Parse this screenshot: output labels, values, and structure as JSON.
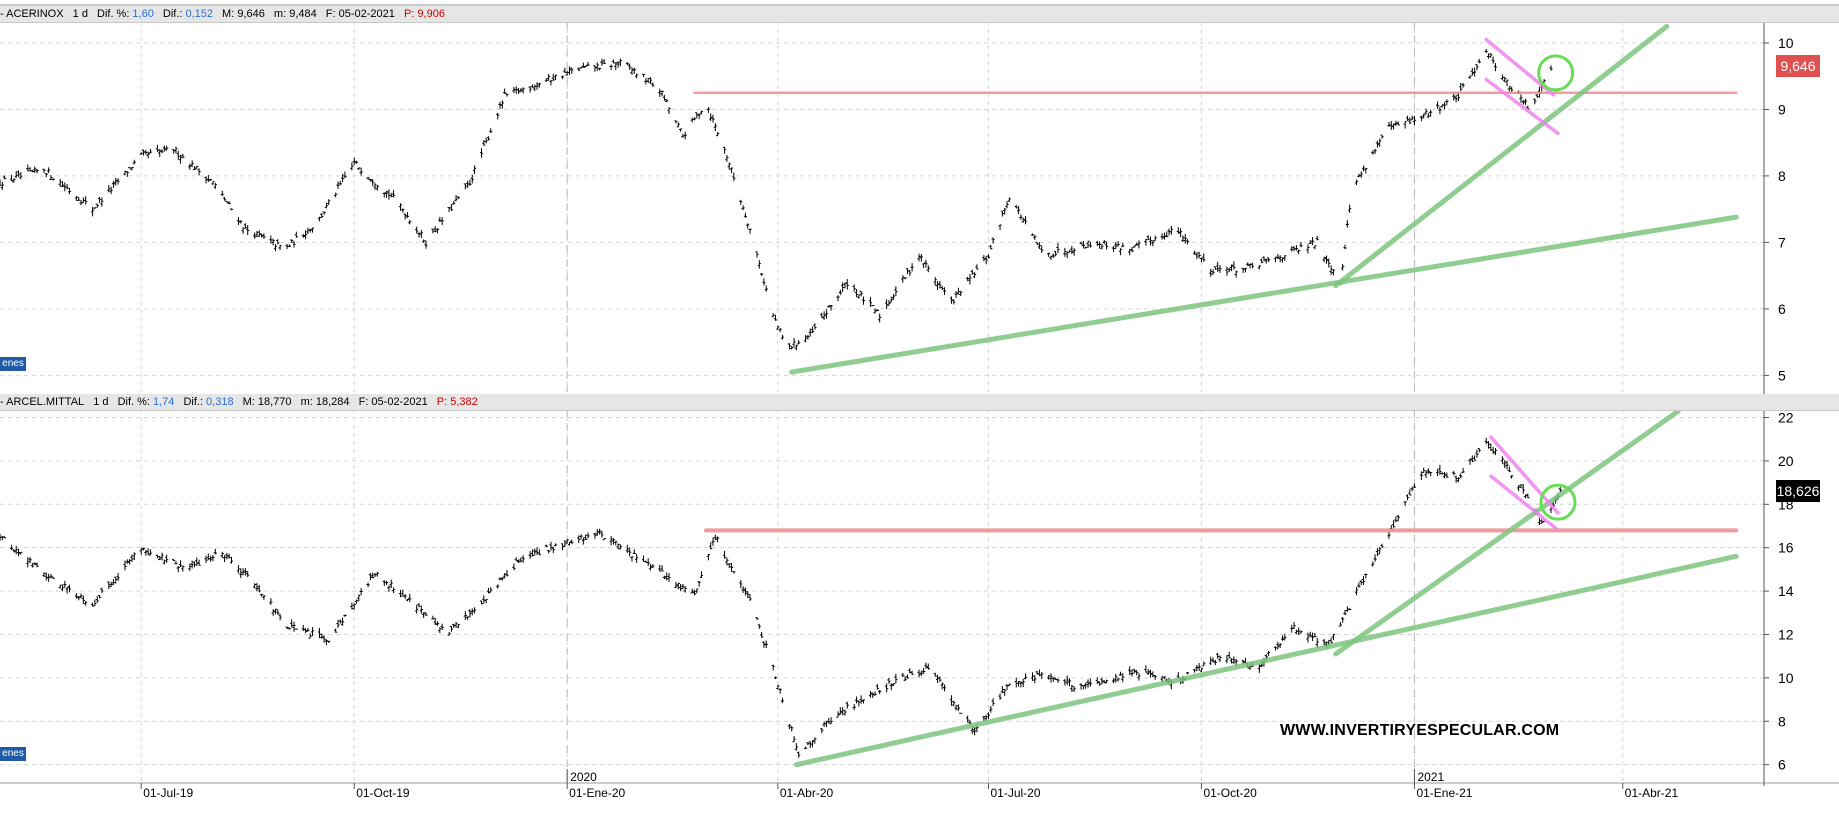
{
  "panels": [
    {
      "name": "ACERINOX",
      "header": {
        "symbol": "- ACERINOX",
        "interval": "1 d",
        "dif_pct_label": "Dif. %:",
        "dif_pct_value": "1,60",
        "dif_label": "Dif.:",
        "dif_value": "0,152",
        "max_text": "M: 9,646",
        "min_text": "m: 9,484",
        "date_text": "F: 05-02-2021",
        "p_text": "P: 9,906"
      },
      "tag": "enes",
      "last_price": "9,646",
      "badge_color": "#e05050"
    },
    {
      "name": "ARCEL.MITTAL",
      "header": {
        "symbol": "- ARCEL.MITTAL",
        "interval": "1 d",
        "dif_pct_label": "Dif. %:",
        "dif_pct_value": "1,74",
        "dif_label": "Dif.:",
        "dif_value": "0,318",
        "max_text": "M: 18,770",
        "min_text": "m: 18,284",
        "date_text": "F: 05-02-2021",
        "p_text": "P: 5,382"
      },
      "tag": "enes",
      "last_price": "18,626",
      "badge_color": "#000000"
    }
  ],
  "watermark": "WWW.INVERTIRYESPECULAR.COM",
  "colors": {
    "trendline": "#7cc47c",
    "resistance": "#f08a8a",
    "channel": "#ee82ee",
    "highlight_circle": "#66dd55",
    "bars": "#000000",
    "grid": "#d6d6d6"
  },
  "chart_data": [
    {
      "type": "ohlc",
      "title": "ACERINOX",
      "x_ticks": [
        "01-Jul-19",
        "01-Oct-19",
        "01-Ene-20",
        "01-Abr-20",
        "01-Jul-20",
        "01-Oct-20",
        "01-Ene-21",
        "01-Abr-21"
      ],
      "x_range": [
        "2019-05-01",
        "2021-06-01"
      ],
      "year_markers": [
        "2020",
        "2021"
      ],
      "y_ticks": [
        5,
        6,
        7,
        8,
        9,
        10
      ],
      "ylim": [
        4.75,
        10.3
      ],
      "last_value": 9.646,
      "price_path": [
        [
          "2019-05-01",
          7.9
        ],
        [
          "2019-05-20",
          8.1
        ],
        [
          "2019-06-10",
          7.5
        ],
        [
          "2019-07-01",
          8.3
        ],
        [
          "2019-07-15",
          8.4
        ],
        [
          "2019-08-01",
          7.9
        ],
        [
          "2019-08-15",
          7.2
        ],
        [
          "2019-09-01",
          6.9
        ],
        [
          "2019-09-15",
          7.3
        ],
        [
          "2019-10-01",
          8.2
        ],
        [
          "2019-10-20",
          7.6
        ],
        [
          "2019-11-01",
          7.0
        ],
        [
          "2019-11-20",
          7.9
        ],
        [
          "2019-12-05",
          9.2
        ],
        [
          "2019-12-20",
          9.4
        ],
        [
          "2020-01-05",
          9.6
        ],
        [
          "2020-01-25",
          9.7
        ],
        [
          "2020-02-10",
          9.3
        ],
        [
          "2020-02-20",
          8.6
        ],
        [
          "2020-03-01",
          9.1
        ],
        [
          "2020-03-10",
          8.3
        ],
        [
          "2020-03-20",
          7.2
        ],
        [
          "2020-03-30",
          5.9
        ],
        [
          "2020-04-05",
          5.4
        ],
        [
          "2020-04-15",
          5.6
        ],
        [
          "2020-05-01",
          6.4
        ],
        [
          "2020-05-15",
          5.9
        ],
        [
          "2020-06-01",
          6.8
        ],
        [
          "2020-06-15",
          6.1
        ],
        [
          "2020-07-01",
          6.8
        ],
        [
          "2020-07-10",
          7.7
        ],
        [
          "2020-07-25",
          6.8
        ],
        [
          "2020-08-15",
          7.0
        ],
        [
          "2020-09-01",
          6.9
        ],
        [
          "2020-09-20",
          7.2
        ],
        [
          "2020-10-05",
          6.6
        ],
        [
          "2020-10-20",
          6.6
        ],
        [
          "2020-11-05",
          6.8
        ],
        [
          "2020-11-20",
          7.0
        ],
        [
          "2020-11-30",
          6.4
        ],
        [
          "2020-12-05",
          7.8
        ],
        [
          "2020-12-20",
          8.7
        ],
        [
          "2021-01-05",
          8.9
        ],
        [
          "2021-01-20",
          9.2
        ],
        [
          "2021-02-01",
          9.9
        ],
        [
          "2021-02-10",
          9.4
        ],
        [
          "2021-02-20",
          9.0
        ],
        [
          "2021-03-01",
          9.65
        ]
      ],
      "annotations": {
        "support_lines": [
          [
            [
              "2020-04-07",
              5.05
            ],
            [
              "2021-05-20",
              7.38
            ]
          ],
          [
            [
              "2020-11-28",
              6.35
            ],
            [
              "2021-04-20",
              10.25
            ]
          ]
        ],
        "resistance_line": [
          [
            "2020-02-25",
            9.25
          ],
          [
            "2021-05-20",
            9.25
          ]
        ],
        "channel_lines": [
          [
            [
              "2021-02-01",
              10.05
            ],
            [
              "2021-03-02",
              9.22
            ]
          ],
          [
            [
              "2021-02-01",
              9.45
            ],
            [
              "2021-03-04",
              8.64
            ]
          ]
        ],
        "circle": [
          "2021-03-03",
          9.55
        ]
      }
    },
    {
      "type": "ohlc",
      "title": "ARCEL.MITTAL",
      "x_ticks": [
        "01-Jul-19",
        "01-Oct-19",
        "01-Ene-20",
        "01-Abr-20",
        "01-Jul-20",
        "01-Oct-20",
        "01-Ene-21",
        "01-Abr-21"
      ],
      "x_range": [
        "2019-05-01",
        "2021-06-01"
      ],
      "year_markers": [
        "2020",
        "2021"
      ],
      "y_ticks": [
        6,
        8,
        10,
        12,
        14,
        16,
        18,
        20,
        22
      ],
      "ylim": [
        5.2,
        22.3
      ],
      "last_value": 18.626,
      "price_path": [
        [
          "2019-05-01",
          16.5
        ],
        [
          "2019-05-20",
          14.8
        ],
        [
          "2019-06-10",
          13.4
        ],
        [
          "2019-07-01",
          16.0
        ],
        [
          "2019-07-20",
          15.0
        ],
        [
          "2019-08-05",
          15.8
        ],
        [
          "2019-08-20",
          14.3
        ],
        [
          "2019-09-01",
          12.4
        ],
        [
          "2019-09-20",
          11.8
        ],
        [
          "2019-10-10",
          14.8
        ],
        [
          "2019-10-25",
          13.6
        ],
        [
          "2019-11-10",
          12.0
        ],
        [
          "2019-11-25",
          13.5
        ],
        [
          "2019-12-10",
          15.3
        ],
        [
          "2019-12-25",
          16.0
        ],
        [
          "2020-01-15",
          16.7
        ],
        [
          "2020-02-05",
          15.2
        ],
        [
          "2020-02-25",
          13.8
        ],
        [
          "2020-03-05",
          16.5
        ],
        [
          "2020-03-20",
          13.5
        ],
        [
          "2020-03-30",
          10.5
        ],
        [
          "2020-04-10",
          6.5
        ],
        [
          "2020-04-25",
          8.2
        ],
        [
          "2020-05-15",
          9.5
        ],
        [
          "2020-06-05",
          10.5
        ],
        [
          "2020-06-25",
          7.5
        ],
        [
          "2020-07-10",
          9.8
        ],
        [
          "2020-07-25",
          10.2
        ],
        [
          "2020-08-10",
          9.5
        ],
        [
          "2020-09-01",
          10.3
        ],
        [
          "2020-09-20",
          9.8
        ],
        [
          "2020-10-10",
          11.0
        ],
        [
          "2020-10-25",
          10.5
        ],
        [
          "2020-11-10",
          12.3
        ],
        [
          "2020-11-25",
          11.5
        ],
        [
          "2020-12-05",
          13.5
        ],
        [
          "2020-12-20",
          16.5
        ],
        [
          "2021-01-05",
          19.5
        ],
        [
          "2021-01-20",
          19.3
        ],
        [
          "2021-02-01",
          20.8
        ],
        [
          "2021-02-10",
          19.8
        ],
        [
          "2021-02-25",
          17.2
        ],
        [
          "2021-03-05",
          18.6
        ]
      ],
      "annotations": {
        "support_lines": [
          [
            [
              "2020-04-09",
              6.0
            ],
            [
              "2021-05-20",
              15.6
            ]
          ],
          [
            [
              "2020-11-28",
              11.1
            ],
            [
              "2021-04-25",
              22.3
            ]
          ]
        ],
        "resistance_line": [
          [
            "2020-03-01",
            16.8
          ],
          [
            "2021-05-20",
            16.8
          ]
        ],
        "channel_lines": [
          [
            [
              "2021-02-03",
              21.1
            ],
            [
              "2021-03-04",
              17.6
            ]
          ],
          [
            [
              "2021-02-03",
              19.3
            ],
            [
              "2021-03-03",
              16.9
            ]
          ]
        ],
        "circle": [
          "2021-03-04",
          18.1
        ]
      }
    }
  ]
}
